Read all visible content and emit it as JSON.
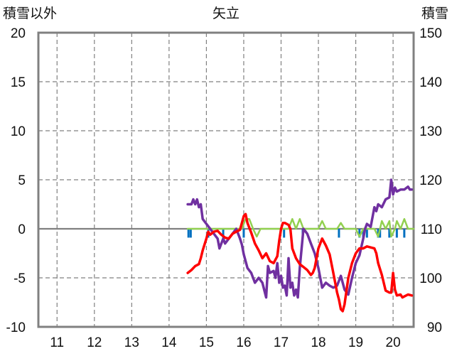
{
  "chart_data": {
    "type": "line",
    "title": "矢立",
    "ylabel_left": "積雪以外",
    "ylabel_right": "積雪",
    "x_ticks": [
      "11",
      "12",
      "13",
      "14",
      "15",
      "16",
      "17",
      "18",
      "19",
      "20"
    ],
    "xlim": [
      10.5,
      20.55
    ],
    "ylim_left": [
      -10,
      20
    ],
    "ylim_right": [
      90,
      150
    ],
    "y_ticks_left": [
      "20",
      "15",
      "10",
      "5",
      "0",
      "-5",
      "-10"
    ],
    "y_ticks_right": [
      "150",
      "140",
      "130",
      "120",
      "110",
      "100",
      "90"
    ],
    "grid": true,
    "series": [
      {
        "axis": "left",
        "color": "#ff0000",
        "points": [
          [
            14.5,
            -4.5
          ],
          [
            14.6,
            -4.2
          ],
          [
            14.7,
            -3.8
          ],
          [
            14.8,
            -3.6
          ],
          [
            14.85,
            -3.0
          ],
          [
            14.9,
            -2.2
          ],
          [
            15.0,
            -1.0
          ],
          [
            15.05,
            -0.3
          ],
          [
            15.1,
            -0.6
          ],
          [
            15.2,
            -0.3
          ],
          [
            15.3,
            -0.2
          ],
          [
            15.4,
            -0.6
          ],
          [
            15.5,
            -0.9
          ],
          [
            15.6,
            -1.0
          ],
          [
            15.7,
            -0.5
          ],
          [
            15.8,
            -0.3
          ],
          [
            15.9,
            -0.1
          ],
          [
            16.0,
            1.3
          ],
          [
            16.05,
            1.5
          ],
          [
            16.1,
            0.6
          ],
          [
            16.2,
            -0.4
          ],
          [
            16.3,
            -1.5
          ],
          [
            16.4,
            -2.2
          ],
          [
            16.5,
            -3.0
          ],
          [
            16.6,
            -2.5
          ],
          [
            16.7,
            -3.3
          ],
          [
            16.8,
            -3.5
          ],
          [
            16.9,
            -2.8
          ],
          [
            16.95,
            -1.2
          ],
          [
            17.0,
            0.0
          ],
          [
            17.05,
            0.6
          ],
          [
            17.1,
            0.6
          ],
          [
            17.2,
            0.4
          ],
          [
            17.25,
            0.0
          ],
          [
            17.3,
            -2.0
          ],
          [
            17.4,
            -3.0
          ],
          [
            17.5,
            -3.6
          ],
          [
            17.6,
            -3.9
          ],
          [
            17.7,
            -4.2
          ],
          [
            17.8,
            -4.7
          ],
          [
            17.85,
            -4.5
          ],
          [
            17.9,
            -4.0
          ],
          [
            18.0,
            -2.0
          ],
          [
            18.1,
            -1.0
          ],
          [
            18.2,
            -1.7
          ],
          [
            18.3,
            -2.6
          ],
          [
            18.4,
            -4.5
          ],
          [
            18.5,
            -6.5
          ],
          [
            18.55,
            -7.2
          ],
          [
            18.6,
            -8.2
          ],
          [
            18.65,
            -8.4
          ],
          [
            18.7,
            -7.7
          ],
          [
            18.8,
            -5.0
          ],
          [
            18.9,
            -3.5
          ],
          [
            19.0,
            -2.5
          ],
          [
            19.1,
            -2.0
          ],
          [
            19.2,
            -2.0
          ],
          [
            19.3,
            -1.8
          ],
          [
            19.4,
            -1.9
          ],
          [
            19.5,
            -2.0
          ],
          [
            19.55,
            -2.5
          ],
          [
            19.6,
            -3.5
          ],
          [
            19.7,
            -4.7
          ],
          [
            19.8,
            -6.3
          ],
          [
            19.9,
            -6.5
          ],
          [
            19.95,
            -6.5
          ],
          [
            20.0,
            -4.5
          ],
          [
            20.05,
            -6.2
          ],
          [
            20.1,
            -6.8
          ],
          [
            20.2,
            -6.7
          ],
          [
            20.25,
            -7.0
          ],
          [
            20.3,
            -6.9
          ],
          [
            20.4,
            -6.7
          ],
          [
            20.5,
            -6.8
          ]
        ]
      },
      {
        "axis": "left",
        "color": "#7030a0",
        "points": [
          [
            14.5,
            2.5
          ],
          [
            14.6,
            2.5
          ],
          [
            14.65,
            3.0
          ],
          [
            14.7,
            2.5
          ],
          [
            14.75,
            3.0
          ],
          [
            14.8,
            2.2
          ],
          [
            14.85,
            2.5
          ],
          [
            14.9,
            1.0
          ],
          [
            15.0,
            0.5
          ],
          [
            15.1,
            0.0
          ],
          [
            15.2,
            -0.5
          ],
          [
            15.3,
            -1.0
          ],
          [
            15.35,
            -2.0
          ],
          [
            15.45,
            -1.0
          ],
          [
            15.5,
            -1.5
          ],
          [
            15.6,
            -1.0
          ],
          [
            15.7,
            -0.5
          ],
          [
            15.8,
            0.0
          ],
          [
            15.9,
            -1.0
          ],
          [
            15.95,
            -1.6
          ],
          [
            16.0,
            -2.6
          ],
          [
            16.1,
            -4.0
          ],
          [
            16.2,
            -4.5
          ],
          [
            16.3,
            -5.5
          ],
          [
            16.4,
            -5.0
          ],
          [
            16.5,
            -5.5
          ],
          [
            16.6,
            -7.0
          ],
          [
            16.65,
            -3.8
          ],
          [
            16.7,
            -4.5
          ],
          [
            16.8,
            -4.3
          ],
          [
            16.85,
            -5.0
          ],
          [
            16.9,
            -3.5
          ],
          [
            16.95,
            -5.5
          ],
          [
            17.0,
            -4.8
          ],
          [
            17.05,
            -6.0
          ],
          [
            17.1,
            -5.8
          ],
          [
            17.15,
            -6.8
          ],
          [
            17.2,
            -3.0
          ],
          [
            17.25,
            -6.0
          ],
          [
            17.3,
            -5.5
          ],
          [
            17.35,
            -6.8
          ],
          [
            17.4,
            -6.2
          ],
          [
            17.45,
            -7.0
          ],
          [
            17.5,
            -4.0
          ],
          [
            17.55,
            -2.0
          ],
          [
            17.6,
            0.0
          ],
          [
            17.7,
            -0.5
          ],
          [
            17.8,
            -1.5
          ],
          [
            17.9,
            -2.5
          ],
          [
            18.0,
            -4.0
          ],
          [
            18.1,
            -6.0
          ],
          [
            18.2,
            -5.5
          ],
          [
            18.3,
            -5.8
          ],
          [
            18.4,
            -6.0
          ],
          [
            18.5,
            -5.8
          ],
          [
            18.6,
            -4.8
          ],
          [
            18.7,
            -6.2
          ],
          [
            18.8,
            -6.7
          ],
          [
            18.9,
            -5.0
          ],
          [
            19.0,
            -3.5
          ],
          [
            19.1,
            -2.7
          ],
          [
            19.2,
            -1.0
          ],
          [
            19.25,
            0.0
          ],
          [
            19.3,
            0.5
          ],
          [
            19.4,
            0.2
          ],
          [
            19.45,
            1.2
          ],
          [
            19.5,
            2.2
          ],
          [
            19.55,
            1.8
          ],
          [
            19.6,
            2.5
          ],
          [
            19.7,
            2.2
          ],
          [
            19.8,
            3.0
          ],
          [
            19.9,
            3.2
          ],
          [
            19.95,
            5.0
          ],
          [
            20.0,
            3.5
          ],
          [
            20.05,
            4.2
          ],
          [
            20.1,
            3.8
          ],
          [
            20.2,
            4.0
          ],
          [
            20.3,
            4.0
          ],
          [
            20.4,
            4.3
          ],
          [
            20.45,
            4.0
          ],
          [
            20.5,
            4.0
          ]
        ]
      },
      {
        "axis": "left",
        "color": "#92d050",
        "points": [
          [
            14.5,
            0
          ],
          [
            15.95,
            0
          ],
          [
            16.05,
            1.0
          ],
          [
            16.15,
            1.0
          ],
          [
            16.25,
            0
          ],
          [
            16.35,
            -0.8
          ],
          [
            16.45,
            0
          ],
          [
            17.2,
            0
          ],
          [
            17.3,
            1.0
          ],
          [
            17.4,
            0
          ],
          [
            17.5,
            1.0
          ],
          [
            17.6,
            0
          ],
          [
            18.0,
            0
          ],
          [
            18.1,
            0.8
          ],
          [
            18.2,
            0
          ],
          [
            18.5,
            0
          ],
          [
            18.6,
            0.6
          ],
          [
            18.7,
            0
          ],
          [
            19.0,
            0
          ],
          [
            19.1,
            -0.8
          ],
          [
            19.2,
            0
          ],
          [
            19.5,
            0
          ],
          [
            19.6,
            -0.8
          ],
          [
            19.7,
            0.8
          ],
          [
            19.8,
            0
          ],
          [
            19.9,
            0.8
          ],
          [
            19.95,
            -0.8
          ],
          [
            20.05,
            0
          ],
          [
            20.1,
            0.8
          ],
          [
            20.2,
            0
          ],
          [
            20.3,
            1.0
          ],
          [
            20.4,
            0
          ],
          [
            20.55,
            0
          ]
        ]
      },
      {
        "axis": "left",
        "color": "#0070c0",
        "type": "bar",
        "x": [
          14.52,
          14.58,
          15.05,
          15.45,
          16.0,
          17.08,
          17.58,
          18.55,
          19.1,
          19.2,
          19.3,
          19.6,
          19.65,
          19.9,
          20.1,
          20.3
        ],
        "values": [
          -0.9,
          -0.9,
          -0.9,
          -0.9,
          -0.9,
          -0.9,
          -0.9,
          -0.9,
          -0.9,
          -0.9,
          -0.9,
          -0.9,
          -0.9,
          -0.9,
          -0.9,
          -0.9
        ]
      }
    ]
  }
}
